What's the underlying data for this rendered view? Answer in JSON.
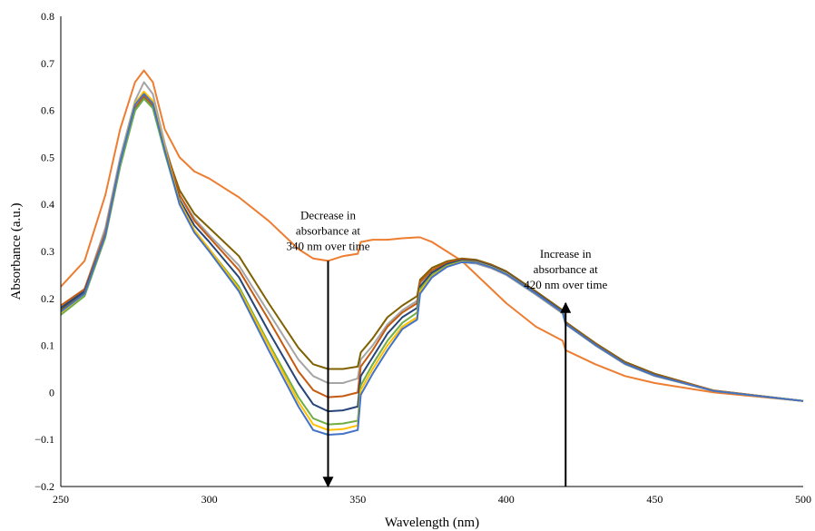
{
  "chart_data": {
    "type": "line",
    "xlabel": "Wavelength  (nm)",
    "ylabel": "Absorbance  (a.u.)",
    "xlim": [
      250,
      500
    ],
    "ylim": [
      -0.2,
      0.8
    ],
    "grid": false,
    "legend": "none",
    "x_ticks": [
      "250",
      "300",
      "350",
      "400",
      "450",
      "500"
    ],
    "y_ticks": [
      "−0.2",
      "−0.1",
      "0",
      "0.1",
      "0.2",
      "0.3",
      "0.4",
      "0.5",
      "0.6",
      "0.7",
      "0.8"
    ],
    "x": [
      250,
      258,
      265,
      270,
      275,
      278,
      281,
      285,
      290,
      295,
      300,
      310,
      320,
      330,
      335,
      340,
      345,
      350,
      351,
      355,
      360,
      365,
      370,
      371,
      375,
      380,
      385,
      390,
      395,
      400,
      410,
      419,
      420,
      430,
      440,
      450,
      470,
      500
    ],
    "series": [
      {
        "color": "#ED7D31",
        "values": [
          0.225,
          0.28,
          0.42,
          0.56,
          0.66,
          0.685,
          0.66,
          0.56,
          0.5,
          0.47,
          0.455,
          0.415,
          0.365,
          0.305,
          0.285,
          0.28,
          0.29,
          0.295,
          0.32,
          0.325,
          0.325,
          0.328,
          0.33,
          0.33,
          0.32,
          0.3,
          0.28,
          0.25,
          0.22,
          0.19,
          0.14,
          0.11,
          0.09,
          0.06,
          0.035,
          0.02,
          0.0,
          -0.018
        ]
      },
      {
        "color": "#A5A5A5",
        "values": [
          0.18,
          0.22,
          0.35,
          0.5,
          0.62,
          0.66,
          0.635,
          0.53,
          0.42,
          0.37,
          0.335,
          0.27,
          0.17,
          0.07,
          0.035,
          0.02,
          0.02,
          0.03,
          0.07,
          0.1,
          0.145,
          0.175,
          0.195,
          0.23,
          0.255,
          0.27,
          0.277,
          0.274,
          0.264,
          0.25,
          0.208,
          0.168,
          0.145,
          0.1,
          0.06,
          0.035,
          0.003,
          -0.018
        ]
      },
      {
        "color": "#7F6000",
        "values": [
          0.175,
          0.215,
          0.34,
          0.49,
          0.605,
          0.628,
          0.61,
          0.52,
          0.43,
          0.38,
          0.35,
          0.29,
          0.19,
          0.095,
          0.06,
          0.05,
          0.05,
          0.055,
          0.085,
          0.115,
          0.16,
          0.185,
          0.205,
          0.24,
          0.265,
          0.279,
          0.285,
          0.282,
          0.272,
          0.258,
          0.215,
          0.175,
          0.15,
          0.105,
          0.065,
          0.04,
          0.004,
          -0.018
        ]
      },
      {
        "color": "#C55A11",
        "values": [
          0.185,
          0.22,
          0.34,
          0.49,
          0.605,
          0.63,
          0.61,
          0.52,
          0.42,
          0.365,
          0.33,
          0.26,
          0.155,
          0.045,
          0.005,
          -0.01,
          -0.008,
          0.0,
          0.055,
          0.09,
          0.14,
          0.17,
          0.19,
          0.235,
          0.26,
          0.276,
          0.283,
          0.28,
          0.27,
          0.256,
          0.213,
          0.173,
          0.148,
          0.103,
          0.063,
          0.038,
          0.004,
          -0.018
        ]
      },
      {
        "color": "#264478",
        "values": [
          0.18,
          0.215,
          0.335,
          0.485,
          0.6,
          0.625,
          0.605,
          0.515,
          0.41,
          0.355,
          0.32,
          0.245,
          0.13,
          0.02,
          -0.025,
          -0.04,
          -0.038,
          -0.03,
          0.035,
          0.075,
          0.125,
          0.16,
          0.18,
          0.225,
          0.255,
          0.273,
          0.281,
          0.279,
          0.269,
          0.255,
          0.212,
          0.172,
          0.147,
          0.102,
          0.062,
          0.037,
          0.003,
          -0.018
        ]
      },
      {
        "color": "#70AD47",
        "values": [
          0.165,
          0.205,
          0.33,
          0.48,
          0.6,
          0.625,
          0.605,
          0.51,
          0.4,
          0.345,
          0.305,
          0.225,
          0.105,
          -0.01,
          -0.055,
          -0.068,
          -0.066,
          -0.06,
          0.015,
          0.06,
          0.11,
          0.148,
          0.17,
          0.22,
          0.25,
          0.27,
          0.279,
          0.277,
          0.267,
          0.253,
          0.21,
          0.17,
          0.146,
          0.101,
          0.061,
          0.036,
          0.003,
          -0.018
        ]
      },
      {
        "color": "#FFC000",
        "values": [
          0.17,
          0.21,
          0.335,
          0.49,
          0.615,
          0.64,
          0.62,
          0.52,
          0.405,
          0.345,
          0.305,
          0.22,
          0.1,
          -0.02,
          -0.068,
          -0.08,
          -0.078,
          -0.07,
          0.005,
          0.05,
          0.1,
          0.14,
          0.16,
          0.215,
          0.247,
          0.268,
          0.278,
          0.277,
          0.267,
          0.253,
          0.21,
          0.17,
          0.146,
          0.101,
          0.061,
          0.036,
          0.003,
          -0.018
        ]
      },
      {
        "color": "#4472C4",
        "values": [
          0.172,
          0.21,
          0.335,
          0.49,
          0.612,
          0.635,
          0.615,
          0.515,
          0.4,
          0.34,
          0.3,
          0.215,
          0.09,
          -0.03,
          -0.08,
          -0.09,
          -0.088,
          -0.08,
          -0.005,
          0.04,
          0.09,
          0.135,
          0.155,
          0.21,
          0.245,
          0.267,
          0.277,
          0.276,
          0.266,
          0.252,
          0.21,
          0.17,
          0.146,
          0.101,
          0.061,
          0.036,
          0.003,
          -0.018
        ]
      }
    ],
    "annotations": [
      {
        "lines": [
          "Decrease in",
          "absorbance at",
          "340 nm over time"
        ],
        "x": 340,
        "y_from": 0.28,
        "y_to": -0.2,
        "direction": "down"
      },
      {
        "lines": [
          "Increase in",
          "absorbance at",
          "420 nm over time"
        ],
        "x": 420,
        "y_from": -0.2,
        "y_to": 0.19,
        "direction": "up"
      }
    ]
  }
}
